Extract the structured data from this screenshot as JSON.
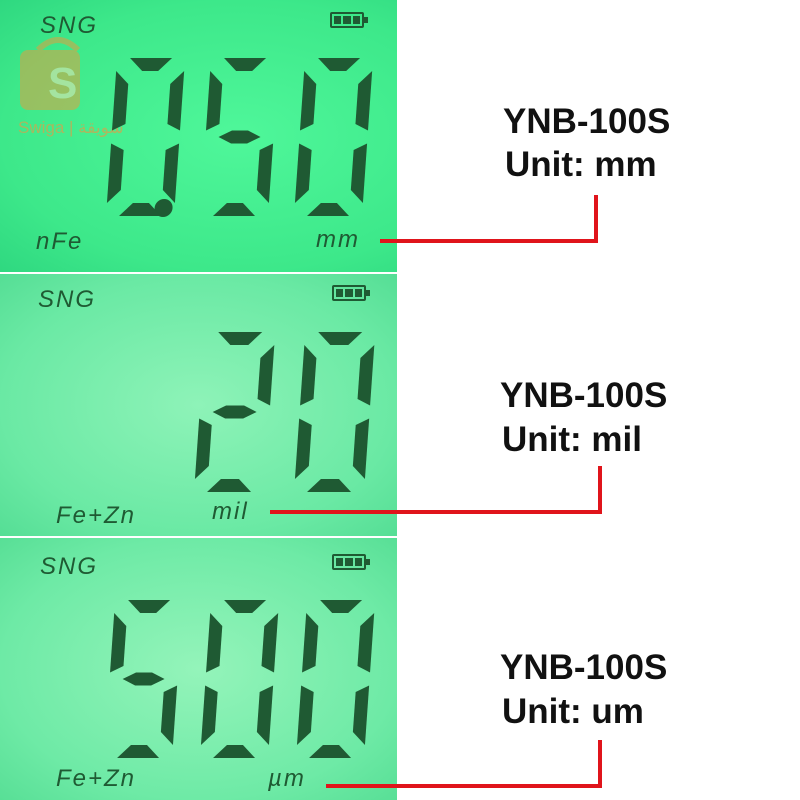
{
  "watermark": {
    "text": "Swiga | سويقة"
  },
  "panels": [
    {
      "brand": "SNG",
      "reading": "0.50",
      "mode": "nFe",
      "unit_display": "mm",
      "model": "YNB-100S",
      "unit_label": "Unit: mm",
      "battery_bars": 3
    },
    {
      "brand": "SNG",
      "reading": "20",
      "mode": "Fe+Zn",
      "unit_display": "mil",
      "model": "YNB-100S",
      "unit_label": "Unit: mil",
      "battery_bars": 3
    },
    {
      "brand": "SNG",
      "reading": "500",
      "mode": "Fe+Zn",
      "unit_display": "µm",
      "model": "YNB-100S",
      "unit_label": "Unit: um",
      "battery_bars": 3
    }
  ],
  "colors": {
    "segment": "#1f5a33",
    "leader_line": "#e0141b"
  }
}
